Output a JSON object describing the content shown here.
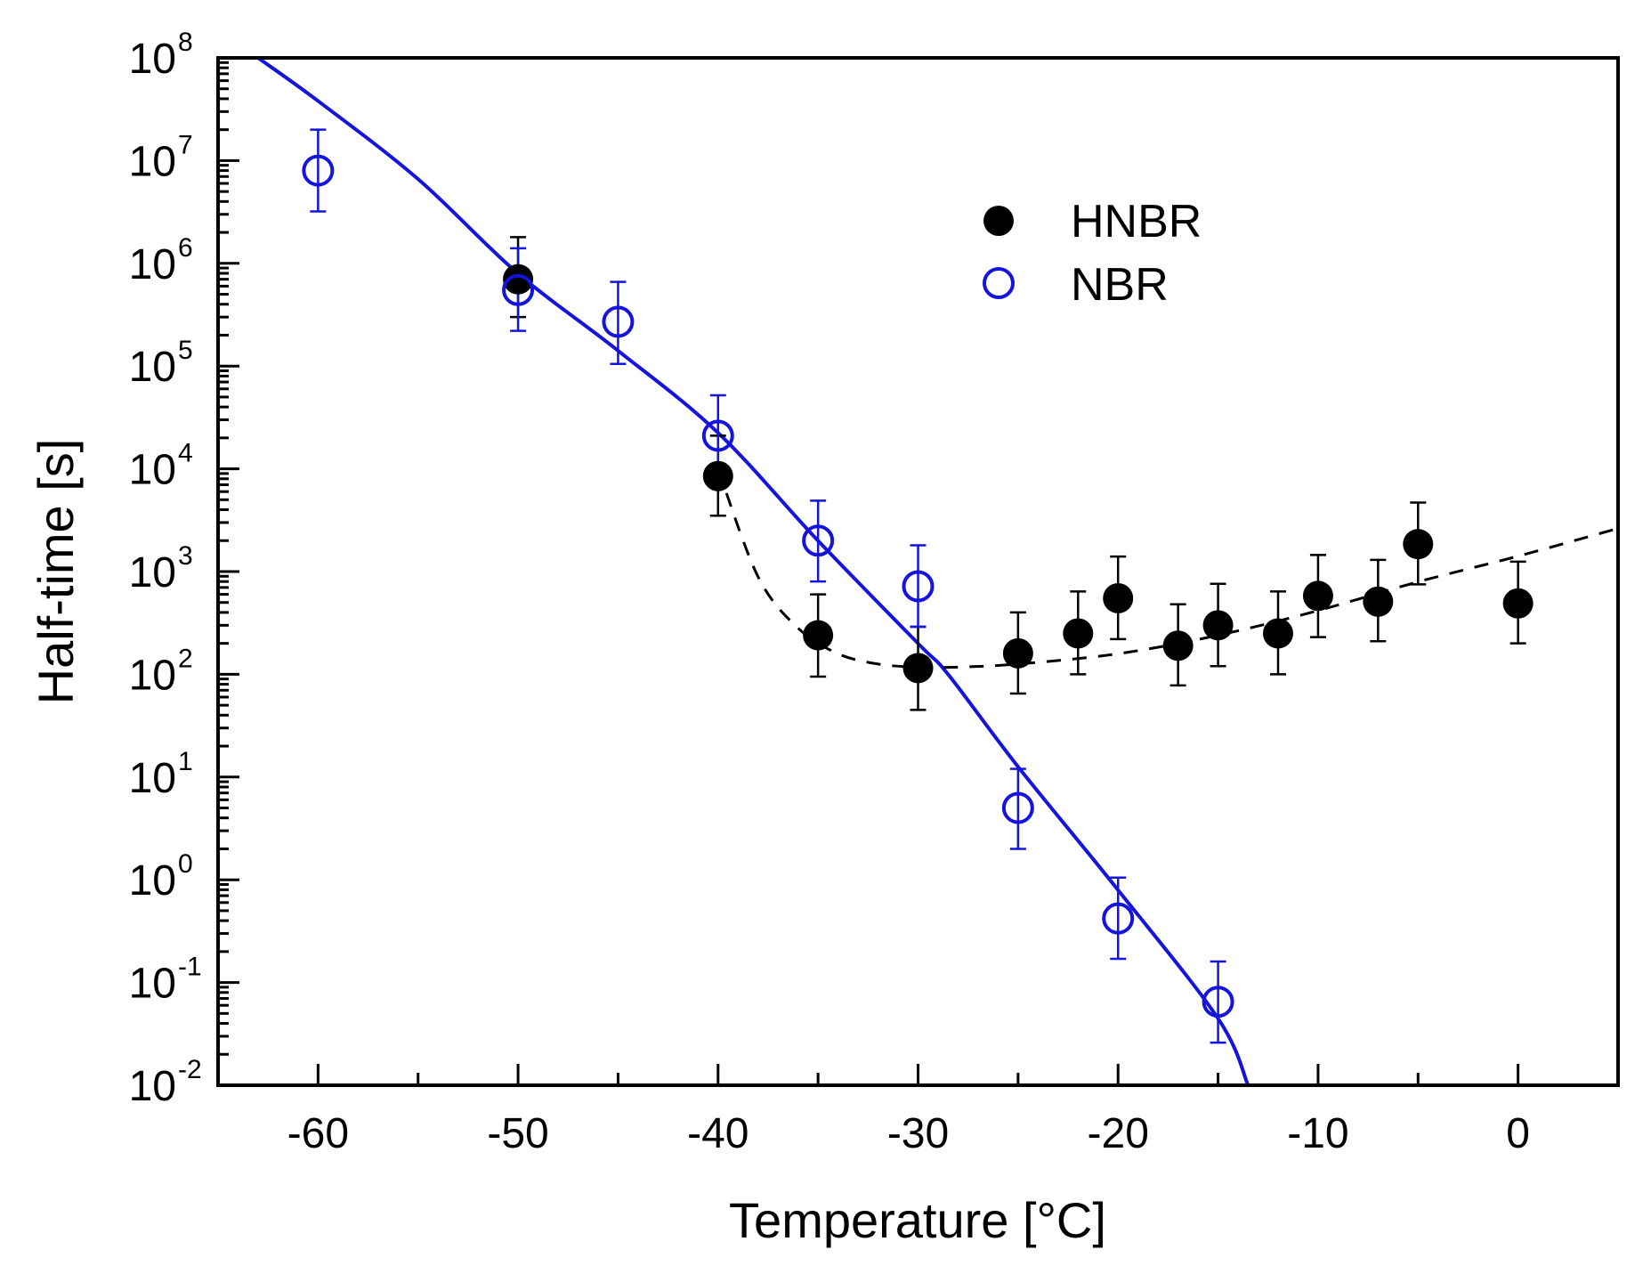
{
  "chart_data": {
    "type": "scatter",
    "title": "",
    "xlabel": "Temperature [°C]",
    "ylabel": "Half-time [s]",
    "xlim": [
      -65,
      5
    ],
    "ylim_log10": [
      -2,
      8
    ],
    "yscale": "log",
    "x_ticks": [
      -60,
      -50,
      -40,
      -30,
      -20,
      -10,
      0
    ],
    "x_tick_labels": [
      "-60",
      "-50",
      "-40",
      "-30",
      "-20",
      "-10",
      "0"
    ],
    "y_tick_base_labels": [
      "10",
      "10",
      "10",
      "10",
      "10",
      "10",
      "10",
      "10",
      "10",
      "10",
      "10"
    ],
    "y_tick_exponents": [
      "-2",
      "-1",
      "0",
      "1",
      "2",
      "3",
      "4",
      "5",
      "6",
      "7",
      "8"
    ],
    "legend_position": "upper-right",
    "series": [
      {
        "name": "HNBR",
        "marker": "filled-circle",
        "color": "#000000",
        "points": [
          {
            "x": -50,
            "y": 700000,
            "err_low": 300000,
            "err_high": 1800000
          },
          {
            "x": -40,
            "y": 8500,
            "err_low": 3500,
            "err_high": 21000
          },
          {
            "x": -35,
            "y": 240,
            "err_low": 95,
            "err_high": 600
          },
          {
            "x": -30,
            "y": 115,
            "err_low": 45,
            "err_high": 290
          },
          {
            "x": -25,
            "y": 160,
            "err_low": 65,
            "err_high": 400
          },
          {
            "x": -22,
            "y": 250,
            "err_low": 100,
            "err_high": 640
          },
          {
            "x": -20,
            "y": 550,
            "err_low": 220,
            "err_high": 1400
          },
          {
            "x": -17,
            "y": 190,
            "err_low": 78,
            "err_high": 480
          },
          {
            "x": -15,
            "y": 300,
            "err_low": 120,
            "err_high": 760
          },
          {
            "x": -12,
            "y": 250,
            "err_low": 100,
            "err_high": 640
          },
          {
            "x": -10,
            "y": 580,
            "err_low": 230,
            "err_high": 1450
          },
          {
            "x": -7,
            "y": 510,
            "err_low": 210,
            "err_high": 1300
          },
          {
            "x": -5,
            "y": 1850,
            "err_low": 750,
            "err_high": 4700
          },
          {
            "x": 0,
            "y": 490,
            "err_low": 200,
            "err_high": 1250
          }
        ]
      },
      {
        "name": "NBR",
        "marker": "open-circle",
        "color": "#1414dc",
        "points": [
          {
            "x": -60,
            "y": 8000000,
            "err_low": 3200000,
            "err_high": 20000000
          },
          {
            "x": -50,
            "y": 550000,
            "err_low": 220000,
            "err_high": 1400000
          },
          {
            "x": -45,
            "y": 270000,
            "err_low": 105000,
            "err_high": 660000
          },
          {
            "x": -40,
            "y": 21000,
            "err_low": 8500,
            "err_high": 52000
          },
          {
            "x": -35,
            "y": 2000,
            "err_low": 800,
            "err_high": 4900
          },
          {
            "x": -30,
            "y": 720,
            "err_low": 290,
            "err_high": 1800
          },
          {
            "x": -25,
            "y": 5,
            "err_low": 2,
            "err_high": 12
          },
          {
            "x": -20,
            "y": 0.42,
            "err_low": 0.17,
            "err_high": 1.05
          },
          {
            "x": -15,
            "y": 0.065,
            "err_low": 0.026,
            "err_high": 0.16
          }
        ]
      }
    ],
    "fit_curves": [
      {
        "name": "NBR fit",
        "style": "solid",
        "color": "#1414dc",
        "points": [
          [
            -63,
            8.0
          ],
          [
            -60,
            7.58
          ],
          [
            -55,
            6.82
          ],
          [
            -50,
            5.9
          ],
          [
            -45,
            5.15
          ],
          [
            -40,
            4.35
          ],
          [
            -35,
            3.3
          ],
          [
            -30,
            2.3
          ],
          [
            -28.5,
            2.0
          ],
          [
            -25,
            1.1
          ],
          [
            -20,
            -0.1
          ],
          [
            -15,
            -1.35
          ],
          [
            -13.5,
            -2.0
          ]
        ]
      },
      {
        "name": "HNBR fit",
        "style": "dashed",
        "color": "#000000",
        "points": [
          [
            -40,
            4.0
          ],
          [
            -38,
            2.95
          ],
          [
            -36,
            2.45
          ],
          [
            -34,
            2.2
          ],
          [
            -32,
            2.1
          ],
          [
            -30,
            2.07
          ],
          [
            -28,
            2.07
          ],
          [
            -25,
            2.1
          ],
          [
            -20,
            2.2
          ],
          [
            -15,
            2.38
          ],
          [
            -10,
            2.62
          ],
          [
            -5,
            2.9
          ],
          [
            0,
            3.15
          ],
          [
            5,
            3.42
          ]
        ]
      }
    ]
  }
}
